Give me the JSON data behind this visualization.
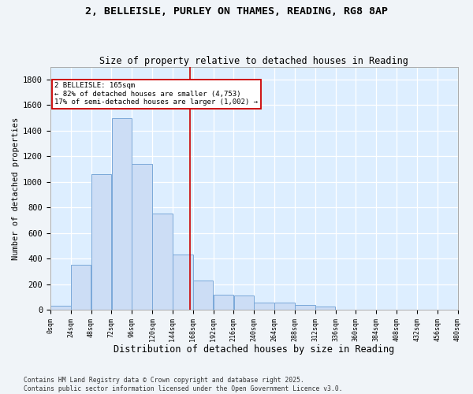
{
  "title1": "2, BELLEISLE, PURLEY ON THAMES, READING, RG8 8AP",
  "title2": "Size of property relative to detached houses in Reading",
  "xlabel": "Distribution of detached houses by size in Reading",
  "ylabel": "Number of detached properties",
  "bar_color": "#ccddf5",
  "bar_edge_color": "#7aa8d8",
  "background_color": "#ddeeff",
  "fig_background": "#f0f4f8",
  "grid_color": "#ffffff",
  "vline_x": 165,
  "vline_color": "#cc0000",
  "annotation_text": "2 BELLEISLE: 165sqm\n← 82% of detached houses are smaller (4,753)\n17% of semi-detached houses are larger (1,002) →",
  "annotation_box_color": "#ffffff",
  "annotation_box_edge_color": "#cc0000",
  "bin_edges": [
    0,
    24,
    48,
    72,
    96,
    120,
    144,
    168,
    192,
    216,
    240,
    264,
    288,
    312,
    336,
    360,
    384,
    408,
    432,
    456,
    480
  ],
  "bar_heights": [
    30,
    350,
    1060,
    1500,
    1140,
    750,
    430,
    230,
    120,
    110,
    55,
    55,
    40,
    25,
    0,
    0,
    0,
    0,
    0,
    0
  ],
  "ylim": [
    0,
    1900
  ],
  "yticks": [
    0,
    200,
    400,
    600,
    800,
    1000,
    1200,
    1400,
    1600,
    1800
  ],
  "footnote": "Contains HM Land Registry data © Crown copyright and database right 2025.\nContains public sector information licensed under the Open Government Licence v3.0."
}
